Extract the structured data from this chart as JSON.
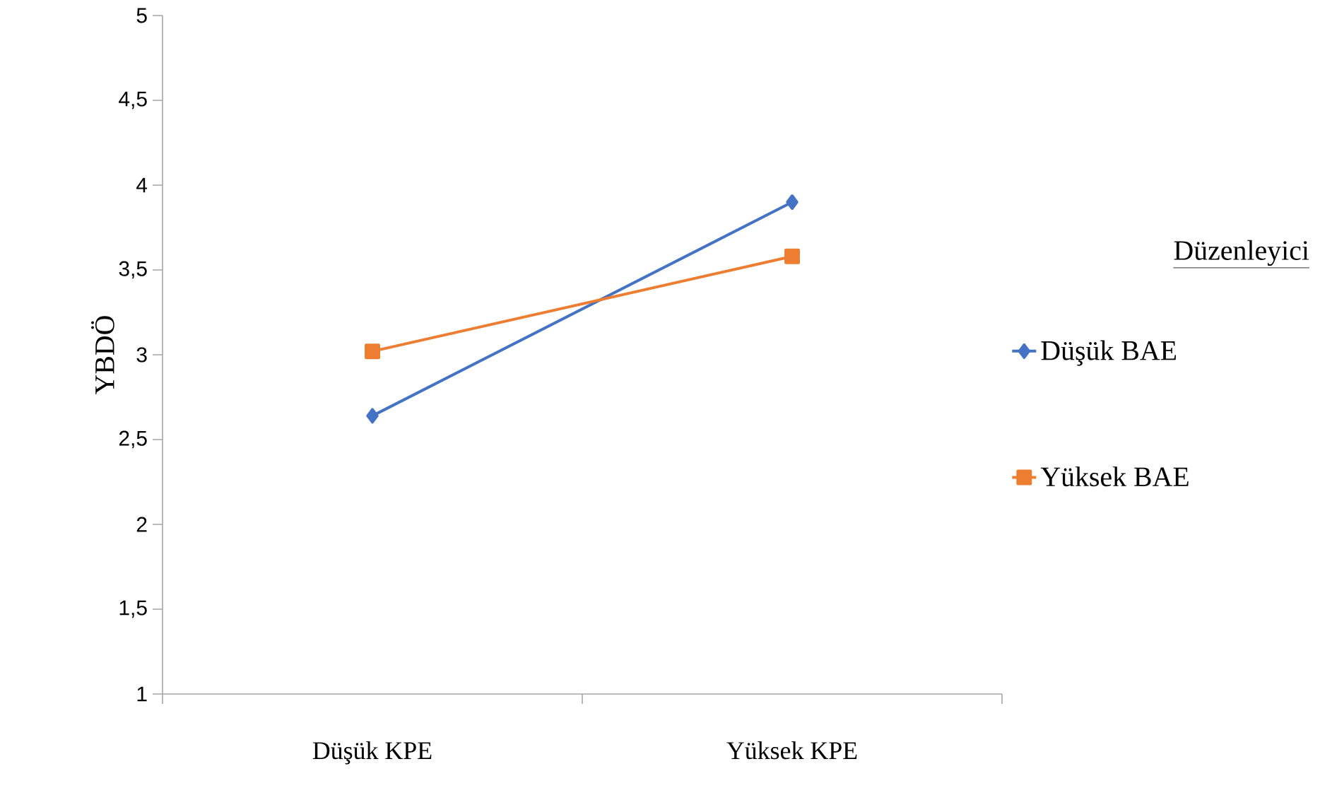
{
  "chart_data": {
    "type": "line",
    "ylabel": "YBDÖ",
    "legend_title": "Düzenleyici",
    "categories": [
      "Düşük KPE",
      "Yüksek KPE"
    ],
    "series": [
      {
        "name": "Düşük BAE",
        "color": "#4472c4",
        "marker": "diamond",
        "values": [
          2.64,
          3.9
        ]
      },
      {
        "name": "Yüksek BAE",
        "color": "#ed7d31",
        "marker": "square",
        "values": [
          3.02,
          3.58
        ]
      }
    ],
    "ylim": [
      1,
      5
    ],
    "yticks": [
      {
        "value": 1,
        "label": "1"
      },
      {
        "value": 1.5,
        "label": "1,5"
      },
      {
        "value": 2,
        "label": "2"
      },
      {
        "value": 2.5,
        "label": "2,5"
      },
      {
        "value": 3,
        "label": "3"
      },
      {
        "value": 3.5,
        "label": "3,5"
      },
      {
        "value": 4,
        "label": "4"
      },
      {
        "value": 4.5,
        "label": "4,5"
      },
      {
        "value": 5,
        "label": "5"
      }
    ],
    "grid": false,
    "legend": "right",
    "line_style": "solid"
  }
}
